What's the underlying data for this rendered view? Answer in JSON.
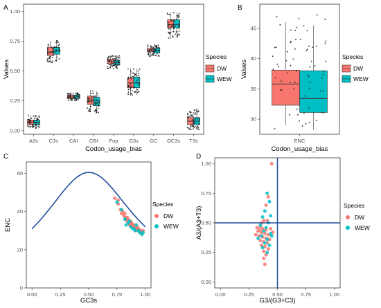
{
  "colors": {
    "DW": "#F8766D",
    "WEW": "#00BFC4",
    "line": "#1F4E9C",
    "grid": "#EBEBEB"
  },
  "legend": {
    "title": "Species",
    "items": [
      "DW",
      "WEW"
    ]
  },
  "chart_data": [
    {
      "panel": "A",
      "type": "box",
      "xlabel": "Codon_usage_bias",
      "ylabel": "Values",
      "ylim": [
        -0.03,
        1.06
      ],
      "yticks": [
        0.0,
        0.25,
        0.5,
        0.75,
        1.0
      ],
      "yticklabels": [
        "0.00",
        "0.25",
        "0.50",
        "0.75",
        "1.00"
      ],
      "categories": [
        "A3s",
        "C3s",
        "CAI",
        "CBI",
        "Fop",
        "G3s",
        "GC",
        "GC3s",
        "T3s"
      ],
      "series": [
        {
          "name": "DW",
          "boxes": [
            [
              0.02,
              0.05,
              0.07,
              0.09,
              0.13
            ],
            [
              0.57,
              0.63,
              0.66,
              0.7,
              0.75
            ],
            [
              0.25,
              0.27,
              0.29,
              0.3,
              0.32
            ],
            [
              0.16,
              0.22,
              0.25,
              0.29,
              0.34
            ],
            [
              0.52,
              0.56,
              0.58,
              0.6,
              0.63
            ],
            [
              0.29,
              0.36,
              0.4,
              0.44,
              0.52
            ],
            [
              0.62,
              0.66,
              0.67,
              0.69,
              0.72
            ],
            [
              0.77,
              0.86,
              0.89,
              0.93,
              0.99
            ],
            [
              0.01,
              0.05,
              0.08,
              0.11,
              0.16
            ]
          ]
        },
        {
          "name": "WEW",
          "boxes": [
            [
              0.02,
              0.05,
              0.07,
              0.09,
              0.13
            ],
            [
              0.58,
              0.64,
              0.67,
              0.7,
              0.76
            ],
            [
              0.25,
              0.27,
              0.29,
              0.3,
              0.32
            ],
            [
              0.15,
              0.21,
              0.25,
              0.28,
              0.33
            ],
            [
              0.52,
              0.55,
              0.57,
              0.59,
              0.63
            ],
            [
              0.3,
              0.36,
              0.4,
              0.45,
              0.52
            ],
            [
              0.62,
              0.65,
              0.67,
              0.69,
              0.72
            ],
            [
              0.78,
              0.86,
              0.89,
              0.93,
              0.99
            ],
            [
              0.01,
              0.05,
              0.08,
              0.11,
              0.18
            ]
          ]
        }
      ]
    },
    {
      "panel": "B",
      "type": "box",
      "xlabel": "Codon_usage_bias",
      "ylabel": "Values",
      "ylim": [
        27.5,
        49
      ],
      "yticks": [
        30,
        35,
        40,
        45
      ],
      "categories": [
        "ENC"
      ],
      "series": [
        {
          "name": "DW",
          "boxes": [
            [
              29.0,
              32.3,
              35.8,
              38.1,
              46.0
            ]
          ]
        },
        {
          "name": "WEW",
          "boxes": [
            [
              28.2,
              31.1,
              33.4,
              38.0,
              45.5
            ]
          ]
        }
      ]
    },
    {
      "panel": "C",
      "type": "scatter",
      "xlabel": "GC3s",
      "ylabel": "ENC",
      "xlim": [
        -0.05,
        1.05
      ],
      "ylim": [
        0,
        66
      ],
      "xticks": [
        0.0,
        0.25,
        0.5,
        0.75,
        1.0
      ],
      "xticklabels": [
        "0.00",
        "0.25",
        "0.50",
        "0.75",
        "1.00"
      ],
      "yticks": [
        0,
        20,
        40,
        60
      ],
      "expected_curve": "ENC = 2 + GC3s + 29/(GC3s^2 + (1-GC3s)^2)",
      "series": [
        {
          "name": "DW",
          "points": [
            [
              0.73,
              47
            ],
            [
              0.76,
              44
            ],
            [
              0.78,
              41
            ],
            [
              0.79,
              39
            ],
            [
              0.81,
              38
            ],
            [
              0.82,
              37
            ],
            [
              0.83,
              36
            ],
            [
              0.84,
              35
            ],
            [
              0.85,
              36
            ],
            [
              0.86,
              34
            ],
            [
              0.86,
              33
            ],
            [
              0.87,
              35
            ],
            [
              0.88,
              34
            ],
            [
              0.89,
              33
            ],
            [
              0.89,
              32
            ],
            [
              0.9,
              33
            ],
            [
              0.91,
              32
            ],
            [
              0.92,
              31
            ],
            [
              0.92,
              30
            ],
            [
              0.93,
              32
            ],
            [
              0.94,
              31
            ],
            [
              0.95,
              30
            ],
            [
              0.95,
              29
            ],
            [
              0.96,
              30
            ],
            [
              0.97,
              29
            ],
            [
              0.98,
              30
            ],
            [
              0.8,
              40
            ],
            [
              0.84,
              37
            ],
            [
              0.87,
              33
            ],
            [
              0.9,
              31
            ],
            [
              0.93,
              31
            ],
            [
              0.96,
              29
            ],
            [
              0.76,
              46
            ],
            [
              0.82,
              39
            ],
            [
              0.88,
              32
            ]
          ]
        },
        {
          "name": "WEW",
          "points": [
            [
              0.75,
              45
            ],
            [
              0.79,
              41
            ],
            [
              0.82,
              36
            ],
            [
              0.85,
              34
            ],
            [
              0.87,
              32
            ],
            [
              0.9,
              31
            ],
            [
              0.92,
              33
            ],
            [
              0.94,
              30
            ],
            [
              0.95,
              29
            ],
            [
              0.97,
              28
            ],
            [
              0.98,
              29
            ],
            [
              0.91,
              30
            ],
            [
              0.86,
              35
            ],
            [
              0.83,
              33
            ],
            [
              0.89,
              31
            ]
          ]
        }
      ]
    },
    {
      "panel": "D",
      "type": "scatter",
      "xlabel": "G3/(G3+C3)",
      "ylabel": "A3/(A3+T3)",
      "xlim": [
        -0.05,
        1.05
      ],
      "ylim": [
        -0.05,
        1.05
      ],
      "xticks": [
        0.0,
        0.25,
        0.5,
        0.75,
        1.0
      ],
      "xticklabels": [
        "0.00",
        "0.25",
        "0.50",
        "0.75",
        "1.00"
      ],
      "yticks": [
        0.0,
        0.25,
        0.5,
        0.75,
        1.0
      ],
      "yticklabels": [
        "0.00",
        "0.25",
        "0.50",
        "0.75",
        "1.00"
      ],
      "reference_lines": {
        "x": 0.5,
        "y": 0.5
      },
      "series": [
        {
          "name": "DW",
          "points": [
            [
              0.45,
              1.0
            ],
            [
              0.42,
              0.72
            ],
            [
              0.4,
              0.65
            ],
            [
              0.38,
              0.52
            ],
            [
              0.35,
              0.47
            ],
            [
              0.37,
              0.45
            ],
            [
              0.4,
              0.44
            ],
            [
              0.33,
              0.43
            ],
            [
              0.36,
              0.42
            ],
            [
              0.39,
              0.41
            ],
            [
              0.42,
              0.4
            ],
            [
              0.31,
              0.4
            ],
            [
              0.34,
              0.39
            ],
            [
              0.37,
              0.38
            ],
            [
              0.4,
              0.37
            ],
            [
              0.43,
              0.36
            ],
            [
              0.35,
              0.35
            ],
            [
              0.38,
              0.34
            ],
            [
              0.41,
              0.33
            ],
            [
              0.36,
              0.31
            ],
            [
              0.39,
              0.3
            ],
            [
              0.42,
              0.28
            ],
            [
              0.38,
              0.26
            ],
            [
              0.4,
              0.23
            ],
            [
              0.39,
              0.15
            ],
            [
              0.34,
              0.44
            ],
            [
              0.44,
              0.45
            ],
            [
              0.32,
              0.46
            ],
            [
              0.46,
              0.42
            ],
            [
              0.36,
              0.5
            ],
            [
              0.41,
              0.52
            ],
            [
              0.38,
              0.2
            ]
          ]
        },
        {
          "name": "WEW",
          "points": [
            [
              0.41,
              0.75
            ],
            [
              0.43,
              0.68
            ],
            [
              0.39,
              0.6
            ],
            [
              0.44,
              0.56
            ],
            [
              0.37,
              0.55
            ],
            [
              0.42,
              0.5
            ],
            [
              0.35,
              0.48
            ],
            [
              0.4,
              0.46
            ],
            [
              0.38,
              0.43
            ],
            [
              0.44,
              0.41
            ],
            [
              0.36,
              0.39
            ],
            [
              0.41,
              0.36
            ],
            [
              0.39,
              0.33
            ],
            [
              0.43,
              0.31
            ],
            [
              0.37,
              0.29
            ],
            [
              0.41,
              0.25
            ],
            [
              0.45,
              0.39
            ],
            [
              0.33,
              0.37
            ]
          ]
        }
      ]
    }
  ]
}
